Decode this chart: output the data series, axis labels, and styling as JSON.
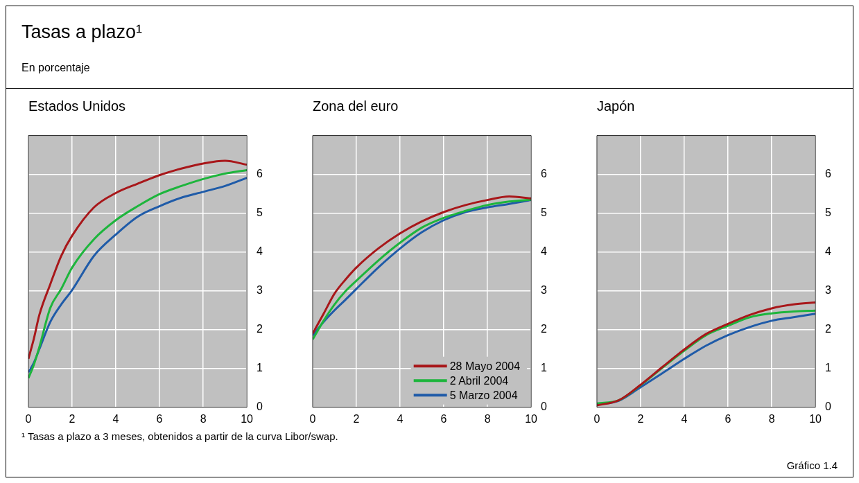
{
  "chart_data": [
    {
      "type": "other",
      "title": "Tasas a plazo¹",
      "subtitle": "En porcentaje"
    },
    {
      "type": "line",
      "title": "Estados Unidos",
      "x": [
        0,
        0.25,
        0.5,
        1,
        1.5,
        2,
        3,
        4,
        5,
        6,
        7,
        8,
        9,
        10
      ],
      "xlim": [
        0,
        10
      ],
      "xticks": [
        0,
        2,
        4,
        6,
        8,
        10
      ],
      "ylim": [
        0,
        7
      ],
      "yticks": [
        0,
        1,
        2,
        3,
        4,
        5,
        6
      ],
      "grid": true,
      "legend": false,
      "series": [
        {
          "color": "#a8171a",
          "values": [
            1.25,
            1.77,
            2.38,
            3.17,
            3.9,
            4.42,
            5.15,
            5.52,
            5.76,
            5.98,
            6.15,
            6.28,
            6.35,
            6.25
          ]
        },
        {
          "color": "#1db53c",
          "values": [
            0.75,
            1.1,
            1.55,
            2.56,
            3.05,
            3.6,
            4.33,
            4.82,
            5.18,
            5.49,
            5.7,
            5.88,
            6.02,
            6.11
          ]
        },
        {
          "color": "#1f5ba8",
          "values": [
            0.9,
            1.15,
            1.5,
            2.2,
            2.65,
            3.02,
            3.9,
            4.45,
            4.91,
            5.18,
            5.4,
            5.55,
            5.7,
            5.91
          ]
        }
      ]
    },
    {
      "type": "line",
      "title": "Zona del euro",
      "x": [
        0,
        0.5,
        1,
        1.5,
        2,
        3,
        4,
        5,
        6,
        7,
        8,
        9,
        10
      ],
      "xlim": [
        0,
        10
      ],
      "xticks": [
        0,
        2,
        4,
        6,
        8,
        10
      ],
      "ylim": [
        0,
        7
      ],
      "yticks": [
        0,
        1,
        2,
        3,
        4,
        5,
        6
      ],
      "grid": true,
      "legend": "bottom right",
      "series": [
        {
          "name": "28 Mayo 2004",
          "color": "#a8171a",
          "values": [
            1.9,
            2.41,
            2.93,
            3.29,
            3.6,
            4.09,
            4.48,
            4.79,
            5.03,
            5.21,
            5.34,
            5.43,
            5.38
          ]
        },
        {
          "name": "2 Abril 2004",
          "color": "#1db53c",
          "values": [
            1.75,
            2.23,
            2.65,
            2.99,
            3.26,
            3.78,
            4.24,
            4.63,
            4.88,
            5.06,
            5.21,
            5.3,
            5.35
          ]
        },
        {
          "name": "5 Marzo 2004",
          "color": "#1f5ba8",
          "values": [
            1.85,
            2.2,
            2.5,
            2.77,
            3.05,
            3.6,
            4.09,
            4.51,
            4.82,
            5.03,
            5.15,
            5.24,
            5.34
          ]
        }
      ]
    },
    {
      "type": "line",
      "title": "Japón",
      "x": [
        0,
        1,
        2,
        3,
        4,
        5,
        6,
        7,
        8,
        9,
        10
      ],
      "xlim": [
        0,
        10
      ],
      "xticks": [
        0,
        2,
        4,
        6,
        8,
        10
      ],
      "ylim": [
        0,
        7
      ],
      "yticks": [
        0,
        1,
        2,
        3,
        4,
        5,
        6
      ],
      "grid": true,
      "legend": false,
      "series": [
        {
          "color": "#a8171a",
          "values": [
            0.05,
            0.18,
            0.58,
            1.04,
            1.49,
            1.89,
            2.15,
            2.38,
            2.55,
            2.65,
            2.7
          ]
        },
        {
          "color": "#1db53c",
          "values": [
            0.1,
            0.18,
            0.57,
            1.02,
            1.46,
            1.86,
            2.1,
            2.32,
            2.42,
            2.47,
            2.49
          ]
        },
        {
          "color": "#1f5ba8",
          "values": [
            0.08,
            0.17,
            0.52,
            0.88,
            1.25,
            1.59,
            1.86,
            2.07,
            2.23,
            2.32,
            2.41
          ]
        }
      ]
    },
    {
      "type": "other",
      "annotations": [
        "¹  Tasas a plazo a 3 meses, obtenidos a partir de la curva Libor/swap.",
        "Gráfico 1.4"
      ]
    }
  ]
}
